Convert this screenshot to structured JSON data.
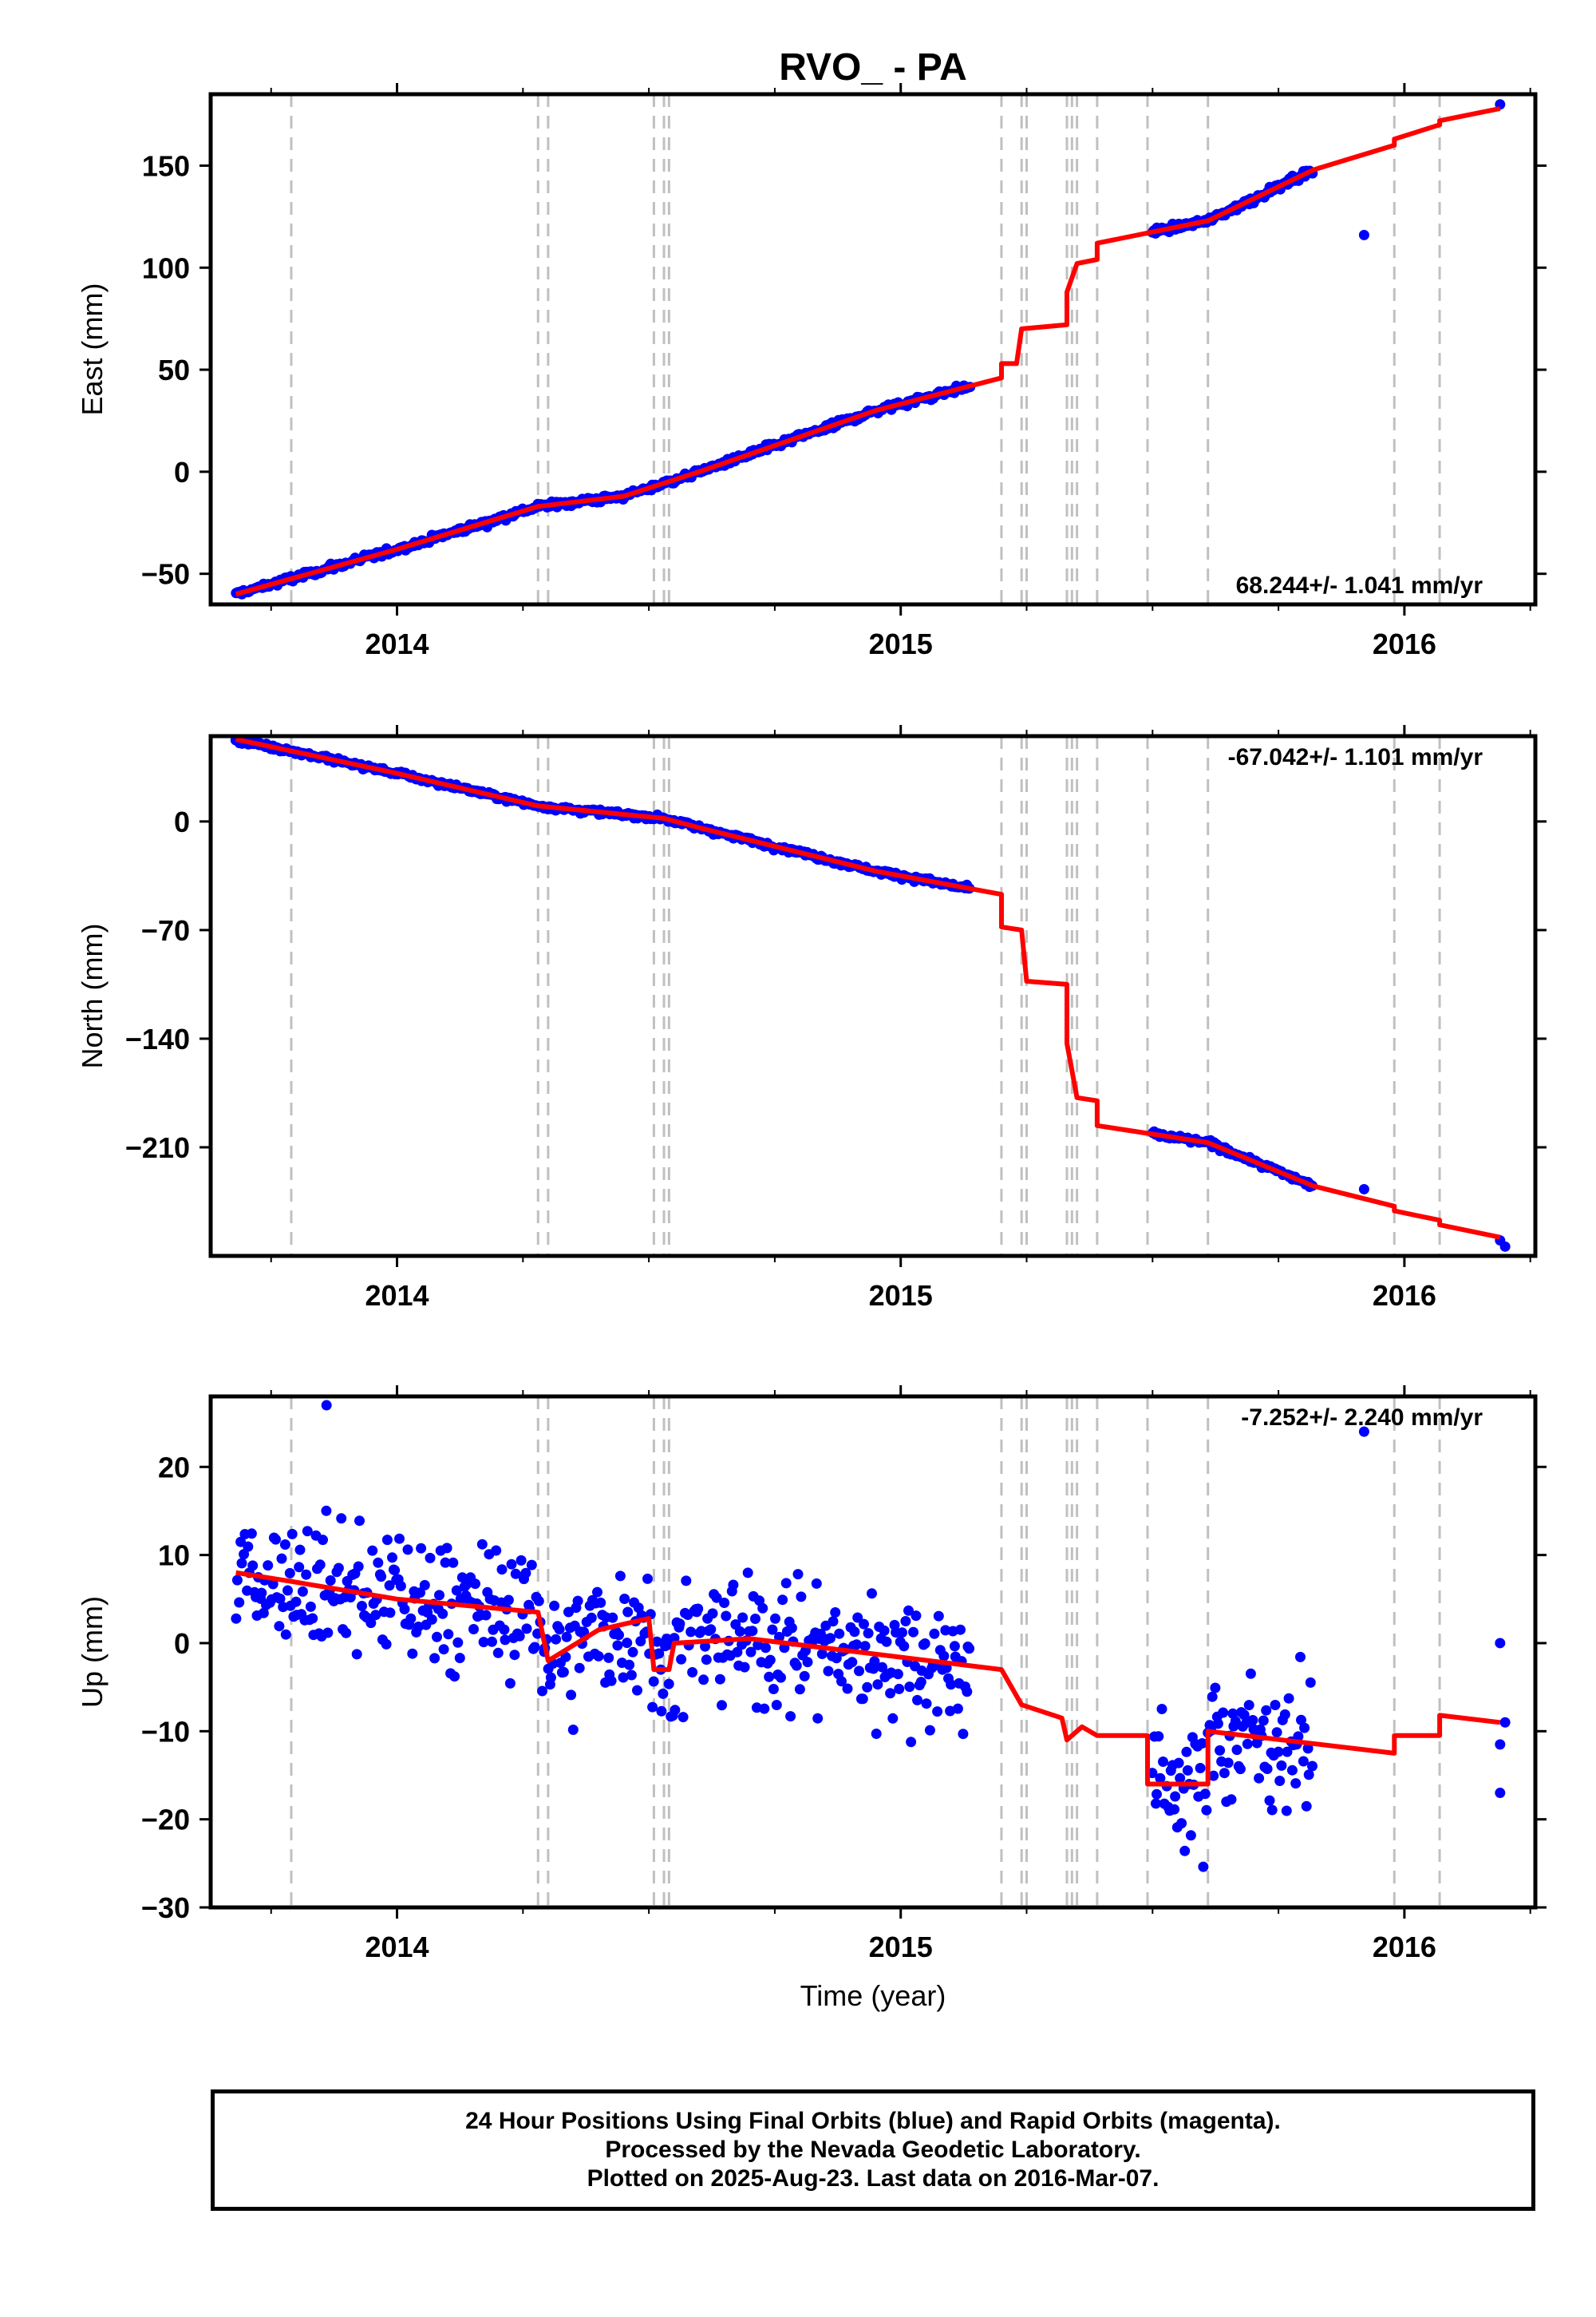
{
  "colors": {
    "final_orbits": "#0000ff",
    "model": "#ff0000",
    "event_lines": "#c0c0c0",
    "frame": "#000000"
  },
  "chart_data": {
    "type": "scatter",
    "title": "RVO_ - PA",
    "xlabel": "Time (year)",
    "xlim": [
      2013.63,
      2016.26
    ],
    "x_ticks": [
      2014,
      2015,
      2016
    ],
    "x_tick_labels": [
      "2014",
      "2015",
      "2016"
    ],
    "event_lines": [
      2013.79,
      2014.28,
      2014.3,
      2014.51,
      2014.53,
      2014.54,
      2015.2,
      2015.24,
      2015.25,
      2015.33,
      2015.34,
      2015.35,
      2015.39,
      2015.49,
      2015.61,
      2015.98,
      2016.07
    ],
    "panels": [
      {
        "component": "east",
        "ylabel": "East (mm)",
        "ylim": [
          -65,
          185
        ],
        "y_ticks": [
          -50,
          0,
          50,
          100,
          150
        ],
        "y_tick_labels": [
          "−50",
          "0",
          "50",
          "100",
          "150"
        ],
        "rate_label": "68.244+/- 1.041 mm/yr",
        "rate_position": "bottom-right",
        "model": [
          [
            2013.68,
            -60
          ],
          [
            2014.0,
            -38
          ],
          [
            2014.28,
            -17
          ],
          [
            2014.45,
            -12
          ],
          [
            2014.6,
            0
          ],
          [
            2014.95,
            30
          ],
          [
            2015.2,
            46
          ],
          [
            2015.2,
            53
          ],
          [
            2015.23,
            53
          ],
          [
            2015.24,
            70
          ],
          [
            2015.33,
            72
          ],
          [
            2015.33,
            88
          ],
          [
            2015.35,
            102
          ],
          [
            2015.39,
            104
          ],
          [
            2015.39,
            112
          ],
          [
            2015.61,
            123
          ],
          [
            2015.82,
            148
          ],
          [
            2015.98,
            160
          ],
          [
            2015.98,
            163
          ],
          [
            2016.07,
            170
          ],
          [
            2016.07,
            172
          ],
          [
            2016.19,
            178
          ]
        ],
        "outliers": [
          [
            2015.92,
            116
          ],
          [
            2016.19,
            180
          ]
        ]
      },
      {
        "component": "north",
        "ylabel": "North (mm)",
        "ylim": [
          -280,
          55
        ],
        "y_ticks": [
          -210,
          -140,
          -70,
          0
        ],
        "y_tick_labels": [
          "−210",
          "−140",
          "−70",
          "0"
        ],
        "rate_label": "-67.042+/- 1.101 mm/yr",
        "rate_position": "top-right",
        "model": [
          [
            2013.68,
            53
          ],
          [
            2014.0,
            31
          ],
          [
            2014.28,
            10
          ],
          [
            2014.53,
            2
          ],
          [
            2014.6,
            -4
          ],
          [
            2014.95,
            -32
          ],
          [
            2015.2,
            -47
          ],
          [
            2015.2,
            -68
          ],
          [
            2015.24,
            -70
          ],
          [
            2015.25,
            -103
          ],
          [
            2015.33,
            -105
          ],
          [
            2015.33,
            -143
          ],
          [
            2015.35,
            -178
          ],
          [
            2015.39,
            -180
          ],
          [
            2015.39,
            -196
          ],
          [
            2015.61,
            -207
          ],
          [
            2015.82,
            -235
          ],
          [
            2015.98,
            -248
          ],
          [
            2015.98,
            -251
          ],
          [
            2016.07,
            -257
          ],
          [
            2016.07,
            -260
          ],
          [
            2016.19,
            -268
          ]
        ],
        "outliers": [
          [
            2015.92,
            -237
          ],
          [
            2016.19,
            -270
          ],
          [
            2016.2,
            -274
          ]
        ]
      },
      {
        "component": "up",
        "ylabel": "Up (mm)",
        "ylim": [
          -30,
          28
        ],
        "y_ticks": [
          -30,
          -20,
          -10,
          0,
          10,
          20
        ],
        "y_tick_labels": [
          "−30",
          "−20",
          "−10",
          "0",
          "10",
          "20"
        ],
        "rate_label": "-7.252+/- 2.240 mm/yr",
        "rate_position": "top-right",
        "model": [
          [
            2013.68,
            8
          ],
          [
            2013.79,
            7
          ],
          [
            2014.0,
            5
          ],
          [
            2014.28,
            3.5
          ],
          [
            2014.3,
            -2
          ],
          [
            2014.4,
            1.5
          ],
          [
            2014.5,
            2.8
          ],
          [
            2014.51,
            -3
          ],
          [
            2014.54,
            -3
          ],
          [
            2014.55,
            0
          ],
          [
            2014.7,
            0.5
          ],
          [
            2015.2,
            -3
          ],
          [
            2015.24,
            -7
          ],
          [
            2015.32,
            -8.5
          ],
          [
            2015.33,
            -11
          ],
          [
            2015.36,
            -9.5
          ],
          [
            2015.39,
            -10.5
          ],
          [
            2015.49,
            -10.5
          ],
          [
            2015.49,
            -16
          ],
          [
            2015.61,
            -16
          ],
          [
            2015.61,
            -10
          ],
          [
            2015.98,
            -12.5
          ],
          [
            2015.98,
            -10.5
          ],
          [
            2016.07,
            -10.5
          ],
          [
            2016.07,
            -8.2
          ],
          [
            2016.19,
            -9
          ]
        ],
        "outliers": [
          [
            2013.86,
            27
          ],
          [
            2015.92,
            24
          ],
          [
            2016.19,
            0
          ],
          [
            2016.2,
            -9
          ],
          [
            2016.19,
            -11.5
          ],
          [
            2016.19,
            -17
          ]
        ]
      }
    ]
  },
  "footnote": {
    "line1": "24 Hour Positions Using Final Orbits (blue) and Rapid Orbits (magenta).",
    "line2": "Processed by the Nevada Geodetic Laboratory.",
    "line3": "Plotted on 2025-Aug-23. Last data on 2016-Mar-07."
  }
}
